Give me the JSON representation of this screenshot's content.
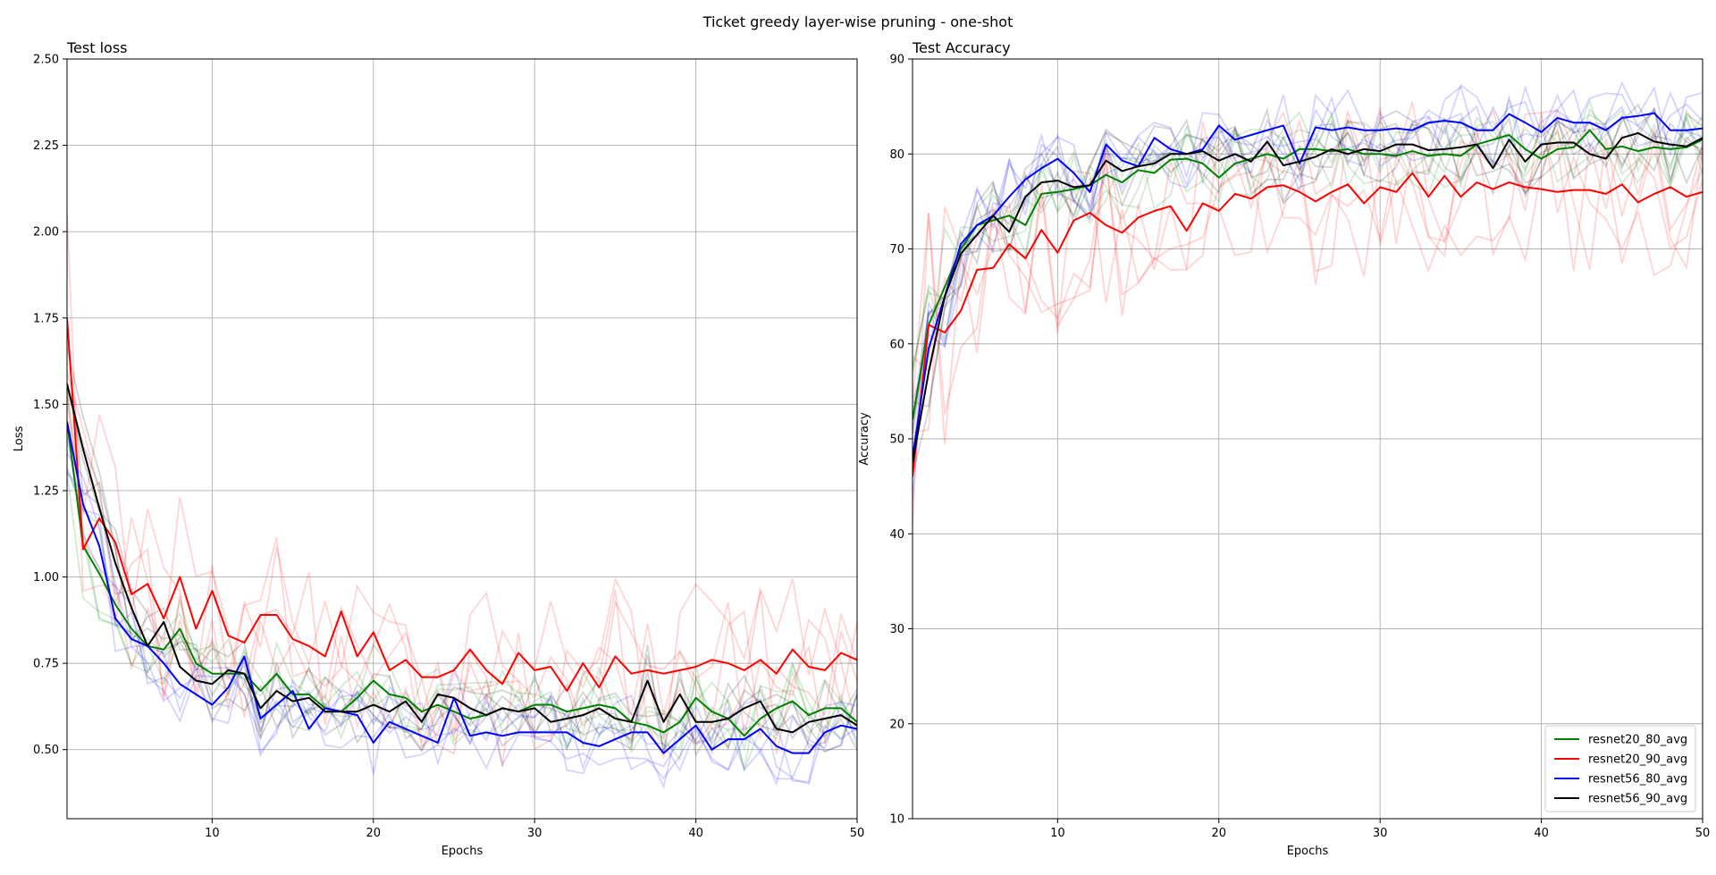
{
  "figure_title": "Ticket greedy layer-wise pruning - one-shot",
  "colors": {
    "resnet20_80_avg": "#008000",
    "resnet20_90_avg": "#ff0000",
    "resnet56_80_avg": "#0000ff",
    "resnet56_90_avg": "#000000"
  },
  "chart_data": [
    {
      "type": "line",
      "title": "Test loss",
      "xlabel": "Epochs",
      "ylabel": "Loss",
      "xlim": [
        1,
        50
      ],
      "ylim": [
        0.3,
        2.5
      ],
      "xticks": [
        10,
        20,
        30,
        40,
        50
      ],
      "yticks": [
        0.5,
        0.75,
        1.0,
        1.25,
        1.5,
        1.75,
        2.0,
        2.25,
        2.5
      ],
      "ytick_labels": [
        "0.50",
        "0.75",
        "1.00",
        "1.25",
        "1.50",
        "1.75",
        "2.00",
        "2.25",
        "2.50"
      ],
      "grid": true,
      "x": [
        1,
        2,
        3,
        4,
        5,
        6,
        7,
        8,
        9,
        10,
        11,
        12,
        13,
        14,
        15,
        16,
        17,
        18,
        19,
        20,
        21,
        22,
        23,
        24,
        25,
        26,
        27,
        28,
        29,
        30,
        31,
        32,
        33,
        34,
        35,
        36,
        37,
        38,
        39,
        40,
        41,
        42,
        43,
        44,
        45,
        46,
        47,
        48,
        49,
        50
      ],
      "series": [
        {
          "name": "resnet20_80_avg",
          "values": [
            1.45,
            1.09,
            1.01,
            0.92,
            0.85,
            0.8,
            0.79,
            0.85,
            0.75,
            0.72,
            0.72,
            0.72,
            0.67,
            0.72,
            0.66,
            0.66,
            0.62,
            0.61,
            0.65,
            0.7,
            0.66,
            0.65,
            0.61,
            0.63,
            0.61,
            0.59,
            0.6,
            0.62,
            0.61,
            0.63,
            0.63,
            0.61,
            0.62,
            0.63,
            0.62,
            0.58,
            0.57,
            0.55,
            0.58,
            0.65,
            0.61,
            0.59,
            0.54,
            0.59,
            0.62,
            0.64,
            0.6,
            0.62,
            0.62,
            0.58
          ]
        },
        {
          "name": "resnet20_90_avg",
          "values": [
            1.75,
            1.08,
            1.17,
            1.1,
            0.95,
            0.98,
            0.88,
            1.0,
            0.85,
            0.96,
            0.83,
            0.81,
            0.89,
            0.89,
            0.82,
            0.8,
            0.77,
            0.9,
            0.77,
            0.84,
            0.73,
            0.76,
            0.71,
            0.71,
            0.73,
            0.79,
            0.73,
            0.69,
            0.78,
            0.73,
            0.74,
            0.67,
            0.75,
            0.68,
            0.77,
            0.72,
            0.73,
            0.72,
            0.73,
            0.74,
            0.76,
            0.75,
            0.73,
            0.76,
            0.72,
            0.79,
            0.74,
            0.73,
            0.78,
            0.76
          ]
        },
        {
          "name": "resnet56_80_avg",
          "values": [
            1.45,
            1.21,
            1.09,
            0.88,
            0.82,
            0.8,
            0.75,
            0.69,
            0.66,
            0.63,
            0.68,
            0.77,
            0.59,
            0.63,
            0.67,
            0.56,
            0.62,
            0.61,
            0.6,
            0.52,
            0.58,
            0.56,
            0.54,
            0.52,
            0.65,
            0.54,
            0.55,
            0.54,
            0.55,
            0.55,
            0.55,
            0.55,
            0.52,
            0.51,
            0.53,
            0.55,
            0.55,
            0.49,
            0.53,
            0.57,
            0.5,
            0.53,
            0.53,
            0.56,
            0.51,
            0.49,
            0.49,
            0.55,
            0.57,
            0.56
          ]
        },
        {
          "name": "resnet56_90_avg",
          "values": [
            1.56,
            1.37,
            1.2,
            1.04,
            0.91,
            0.8,
            0.87,
            0.74,
            0.7,
            0.69,
            0.73,
            0.72,
            0.62,
            0.67,
            0.64,
            0.65,
            0.61,
            0.61,
            0.61,
            0.63,
            0.61,
            0.64,
            0.58,
            0.66,
            0.65,
            0.62,
            0.6,
            0.62,
            0.61,
            0.62,
            0.58,
            0.59,
            0.6,
            0.62,
            0.59,
            0.58,
            0.7,
            0.58,
            0.66,
            0.58,
            0.58,
            0.59,
            0.62,
            0.64,
            0.56,
            0.55,
            0.58,
            0.59,
            0.6,
            0.57
          ]
        }
      ]
    },
    {
      "type": "line",
      "title": "Test Accuracy",
      "xlabel": "Epochs",
      "ylabel": "Accuracy",
      "xlim": [
        1,
        50
      ],
      "ylim": [
        10,
        90
      ],
      "xticks": [
        10,
        20,
        30,
        40,
        50
      ],
      "yticks": [
        10,
        20,
        30,
        40,
        50,
        60,
        70,
        80,
        90
      ],
      "ytick_labels": [
        "10",
        "20",
        "30",
        "40",
        "50",
        "60",
        "70",
        "80",
        "90"
      ],
      "grid": true,
      "legend": {
        "placement": "lower-right",
        "entries": [
          "resnet20_80_avg",
          "resnet20_90_avg",
          "resnet56_80_avg",
          "resnet56_90_avg"
        ]
      },
      "x": [
        1,
        2,
        3,
        4,
        5,
        6,
        7,
        8,
        9,
        10,
        11,
        12,
        13,
        14,
        15,
        16,
        17,
        18,
        19,
        20,
        21,
        22,
        23,
        24,
        25,
        26,
        27,
        28,
        29,
        30,
        31,
        32,
        33,
        34,
        35,
        36,
        37,
        38,
        39,
        40,
        41,
        42,
        43,
        44,
        45,
        46,
        47,
        48,
        49,
        50
      ],
      "series": [
        {
          "name": "resnet20_80_avg",
          "values": [
            52,
            62,
            66,
            70,
            72.5,
            73,
            73.5,
            72.5,
            75.8,
            76,
            76.3,
            76.7,
            77.8,
            77,
            78.3,
            78,
            79.4,
            79.5,
            79,
            77.5,
            79,
            79.5,
            80,
            79.5,
            80.5,
            80.5,
            80.3,
            80.5,
            80,
            80,
            79.8,
            80.3,
            79.8,
            80,
            79.8,
            81,
            81.5,
            82,
            80.5,
            79.5,
            80.5,
            80.7,
            82.5,
            80.5,
            80.8,
            80.3,
            80.7,
            80.5,
            80.7,
            81.5
          ]
        },
        {
          "name": "resnet20_90_avg",
          "values": [
            46,
            62,
            61.2,
            63.5,
            67.8,
            68,
            70.5,
            69,
            72,
            69.6,
            73,
            73.8,
            72.5,
            71.7,
            73.3,
            74,
            74.5,
            71.9,
            74.8,
            74,
            75.8,
            75.3,
            76.5,
            76.7,
            76,
            75,
            76,
            76.8,
            74.8,
            76.5,
            76,
            78,
            75.5,
            77.7,
            75.5,
            77,
            76.3,
            77,
            76.5,
            76.3,
            76,
            76.2,
            76.2,
            75.8,
            76.8,
            74.9,
            75.8,
            76.5,
            75.5,
            76
          ]
        },
        {
          "name": "resnet56_80_avg",
          "values": [
            48,
            59.5,
            65,
            70.5,
            72.5,
            73.5,
            75.5,
            77.3,
            78.5,
            79.5,
            78,
            76,
            81,
            79.3,
            78.7,
            81.7,
            80.5,
            80,
            80.5,
            83,
            81.5,
            82,
            82.5,
            83,
            79,
            82.8,
            82.5,
            82.8,
            82.5,
            82.5,
            82.7,
            82.5,
            83.3,
            83.5,
            83.3,
            82.5,
            82.5,
            84.2,
            83.3,
            82.3,
            83.8,
            83.3,
            83.3,
            82.5,
            83.8,
            84,
            84.3,
            82.5,
            82.5,
            82.7
          ]
        },
        {
          "name": "resnet56_90_avg",
          "values": [
            47.5,
            57,
            65,
            69.5,
            71.5,
            73.5,
            71.8,
            75.5,
            77,
            77.2,
            76.5,
            76.7,
            79.3,
            78.2,
            78.7,
            79,
            80,
            80,
            80.3,
            79.3,
            80,
            79.2,
            81.3,
            78.8,
            79.2,
            79.7,
            80.5,
            80,
            80.5,
            80.3,
            81,
            81,
            80.4,
            80.5,
            80.7,
            81,
            78.5,
            81.5,
            79.2,
            81,
            81.2,
            81.2,
            80,
            79.5,
            81.7,
            82.2,
            81.3,
            81,
            80.8,
            81.7
          ]
        }
      ]
    }
  ]
}
